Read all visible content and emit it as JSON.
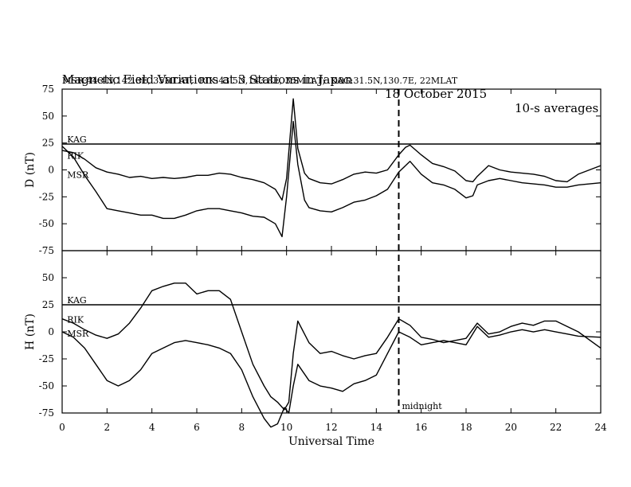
{
  "title": {
    "main": "Magnetic Field Variations at 3 Stations in Japan",
    "date": "18 October 2015",
    "averaging": "10-s averages"
  },
  "subtitle": "MSR:44.4N,142.3E, 35MLAT;  RIK:43.5N,143.8E, 35MLAT;  KAG:31.5N,130.7E, 22MLAT",
  "chart_data": [
    {
      "type": "line",
      "ylabel": "D (nT)",
      "ylim": [
        -75,
        75
      ],
      "yticks": [
        75,
        50,
        25,
        0,
        -25,
        -50,
        -75
      ],
      "xlim": [
        0,
        24
      ],
      "xticks": [
        0,
        2,
        4,
        6,
        8,
        10,
        12,
        14,
        16,
        18,
        20,
        22,
        24
      ],
      "labels": [
        {
          "text": "KAG",
          "x": 0.15,
          "y": 24
        },
        {
          "text": "RIK",
          "x": 0.15,
          "y": 9
        },
        {
          "text": "MSR",
          "x": 0.15,
          "y": -9
        }
      ],
      "series": [
        {
          "name": "KAG",
          "x": [
            0,
            6,
            12,
            18,
            24
          ],
          "y": [
            24,
            24,
            24,
            24,
            24
          ]
        },
        {
          "name": "RIK",
          "x": [
            0,
            0.5,
            1,
            1.5,
            2,
            2.5,
            3,
            3.5,
            4,
            4.5,
            5,
            5.5,
            6,
            6.5,
            7,
            7.5,
            8,
            8.5,
            9,
            9.5,
            9.8,
            10,
            10.3,
            10.5,
            10.8,
            11,
            11.5,
            12,
            12.5,
            13,
            13.5,
            14,
            14.5,
            15,
            15.3,
            15.5,
            16,
            16.5,
            17,
            17.5,
            18,
            18.3,
            18.5,
            19,
            19.5,
            20,
            20.5,
            21,
            21.5,
            22,
            22.5,
            23,
            24
          ],
          "y": [
            18,
            16,
            10,
            2,
            -2,
            -4,
            -7,
            -6,
            -8,
            -7,
            -8,
            -7,
            -5,
            -5,
            -3,
            -4,
            -7,
            -9,
            -12,
            -18,
            -28,
            -8,
            66,
            20,
            -3,
            -8,
            -12,
            -13,
            -9,
            -4,
            -2,
            -3,
            0,
            14,
            21,
            23,
            14,
            6,
            3,
            -1,
            -10,
            -11,
            -6,
            4,
            0,
            -2,
            -3,
            -4,
            -6,
            -10,
            -11,
            -4,
            4
          ]
        },
        {
          "name": "MSR",
          "x": [
            0,
            0.5,
            1,
            1.5,
            2,
            2.5,
            3,
            3.5,
            4,
            4.5,
            5,
            5.5,
            6,
            6.5,
            7,
            7.5,
            8,
            8.5,
            9,
            9.5,
            9.8,
            10,
            10.3,
            10.5,
            10.8,
            11,
            11.5,
            12,
            12.5,
            13,
            13.5,
            14,
            14.5,
            15,
            15.3,
            15.5,
            16,
            16.5,
            17,
            17.5,
            18,
            18.3,
            18.5,
            19,
            19.5,
            20,
            20.5,
            21,
            21.5,
            22,
            22.5,
            23,
            24
          ],
          "y": [
            22,
            12,
            -5,
            -20,
            -36,
            -38,
            -40,
            -42,
            -42,
            -45,
            -45,
            -42,
            -38,
            -36,
            -36,
            -38,
            -40,
            -43,
            -44,
            -50,
            -62,
            -25,
            45,
            5,
            -28,
            -35,
            -38,
            -39,
            -35,
            -30,
            -28,
            -24,
            -18,
            -2,
            4,
            8,
            -4,
            -12,
            -14,
            -18,
            -26,
            -24,
            -14,
            -10,
            -8,
            -10,
            -12,
            -13,
            -14,
            -16,
            -16,
            -14,
            -12
          ]
        }
      ]
    },
    {
      "type": "line",
      "ylabel": "H (nT)",
      "ylim": [
        -75,
        75
      ],
      "yticks": [
        75,
        50,
        25,
        0,
        -25,
        -50,
        -75
      ],
      "xlim": [
        0,
        24
      ],
      "xticks": [
        0,
        2,
        4,
        6,
        8,
        10,
        12,
        14,
        16,
        18,
        20,
        22,
        24
      ],
      "xlabel": "Universal Time",
      "marker": {
        "x": 15,
        "label": "midnight"
      },
      "labels": [
        {
          "text": "KAG",
          "x": 0.15,
          "y": 25
        },
        {
          "text": "RIK",
          "x": 0.15,
          "y": 7
        },
        {
          "text": "MSR",
          "x": 0.15,
          "y": -6
        }
      ],
      "series": [
        {
          "name": "KAG",
          "x": [
            0,
            6,
            12,
            18,
            24
          ],
          "y": [
            25,
            25,
            25,
            25,
            25
          ]
        },
        {
          "name": "RIK",
          "x": [
            0,
            0.5,
            1,
            1.5,
            2,
            2.5,
            3,
            3.5,
            4,
            4.5,
            5,
            5.5,
            6,
            6.5,
            7,
            7.5,
            8,
            8.5,
            9,
            9.3,
            9.6,
            9.9,
            10.1,
            10.3,
            10.5,
            11,
            11.5,
            12,
            12.5,
            13,
            13.5,
            14,
            14.5,
            15,
            15.5,
            16,
            16.5,
            17,
            17.5,
            18,
            18.5,
            19,
            19.5,
            20,
            20.5,
            21,
            21.5,
            22,
            22.5,
            23,
            24
          ],
          "y": [
            12,
            8,
            2,
            -3,
            -6,
            -2,
            8,
            22,
            38,
            42,
            45,
            45,
            35,
            38,
            38,
            30,
            0,
            -30,
            -50,
            -60,
            -65,
            -72,
            -65,
            -20,
            10,
            -10,
            -20,
            -18,
            -22,
            -25,
            -22,
            -20,
            -5,
            12,
            6,
            -5,
            -7,
            -10,
            -8,
            -6,
            8,
            -2,
            0,
            5,
            8,
            6,
            10,
            10,
            5,
            0,
            -15
          ]
        },
        {
          "name": "MSR",
          "x": [
            0,
            0.5,
            1,
            1.5,
            2,
            2.5,
            3,
            3.5,
            4,
            4.5,
            5,
            5.5,
            6,
            6.5,
            7,
            7.5,
            8,
            8.5,
            9,
            9.3,
            9.6,
            9.9,
            10.1,
            10.3,
            10.5,
            11,
            11.5,
            12,
            12.5,
            13,
            13.5,
            14,
            14.5,
            15,
            15.5,
            16,
            16.5,
            17,
            17.5,
            18,
            18.5,
            19,
            19.5,
            20,
            20.5,
            21,
            21.5,
            22,
            22.5,
            23,
            24
          ],
          "y": [
            0,
            -5,
            -15,
            -30,
            -45,
            -50,
            -45,
            -35,
            -20,
            -15,
            -10,
            -8,
            -10,
            -12,
            -15,
            -20,
            -35,
            -60,
            -80,
            -88,
            -85,
            -70,
            -75,
            -50,
            -30,
            -45,
            -50,
            -52,
            -55,
            -48,
            -45,
            -40,
            -20,
            0,
            -5,
            -12,
            -10,
            -8,
            -10,
            -12,
            5,
            -5,
            -3,
            0,
            2,
            0,
            2,
            0,
            -2,
            -4,
            -5
          ]
        }
      ]
    }
  ]
}
